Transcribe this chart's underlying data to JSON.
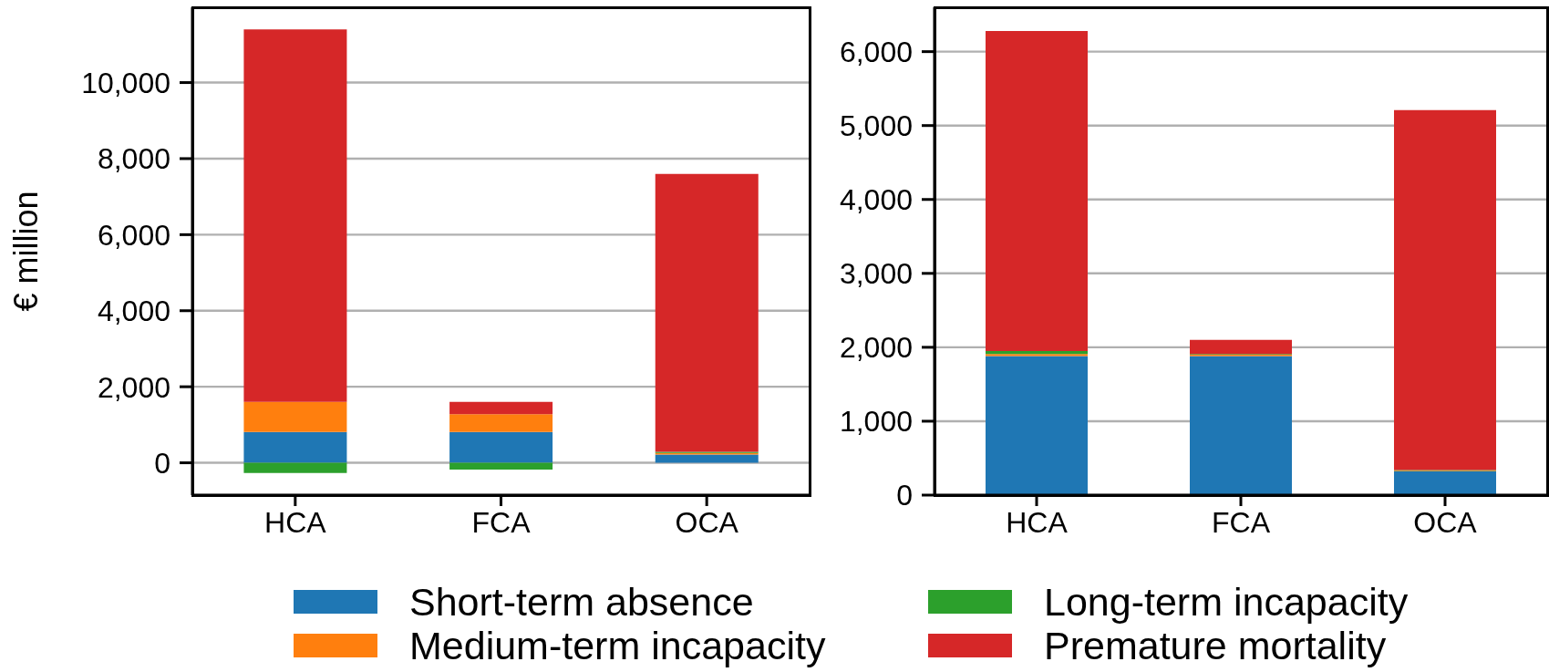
{
  "chart_data": [
    {
      "type": "bar",
      "stacked": true,
      "ylabel": "€ million",
      "categories": [
        "HCA",
        "FCA",
        "OCA"
      ],
      "series": [
        {
          "name": "Short-term absence",
          "color": "#1f77b4",
          "values": [
            810,
            810,
            220
          ]
        },
        {
          "name": "Medium-term incapacity",
          "color": "#ff7f0e",
          "values": [
            790,
            470,
            40
          ]
        },
        {
          "name": "Long-term incapacity",
          "color": "#2ca02c",
          "values": [
            -270,
            -180,
            30
          ]
        },
        {
          "name": "Premature mortality",
          "color": "#d62728",
          "values": [
            9800,
            320,
            7310
          ]
        }
      ],
      "ylim": [
        -850,
        11980
      ],
      "yticks": [
        0,
        {
          "value": 2000,
          "label": "2,000"
        },
        {
          "value": 4000,
          "label": "4,000"
        },
        {
          "value": 6000,
          "label": "6,000"
        },
        {
          "value": 8000,
          "label": "8,000"
        },
        {
          "value": 10000,
          "label": "10,000"
        }
      ],
      "grid": "y",
      "legend": "bottom"
    },
    {
      "type": "bar",
      "stacked": true,
      "categories": [
        "HCA",
        "FCA",
        "OCA"
      ],
      "series": [
        {
          "color": "#1f77b4",
          "values": [
            1880,
            1880,
            320
          ]
        },
        {
          "color": "#ff7f0e",
          "values": [
            30,
            20,
            10
          ]
        },
        {
          "color": "#2ca02c",
          "values": [
            40,
            10,
            10
          ]
        },
        {
          "color": "#d62728",
          "values": [
            4330,
            190,
            4870
          ]
        }
      ],
      "ylim": [
        0,
        6600
      ],
      "yticks": [
        0,
        {
          "value": 1000,
          "label": "1,000"
        },
        {
          "value": 2000,
          "label": "2,000"
        },
        {
          "value": 3000,
          "label": "3,000"
        },
        {
          "value": 4000,
          "label": "4,000"
        },
        {
          "value": 5000,
          "label": "5,000"
        },
        {
          "value": 6000,
          "label": "6,000"
        }
      ],
      "grid": "y"
    }
  ]
}
